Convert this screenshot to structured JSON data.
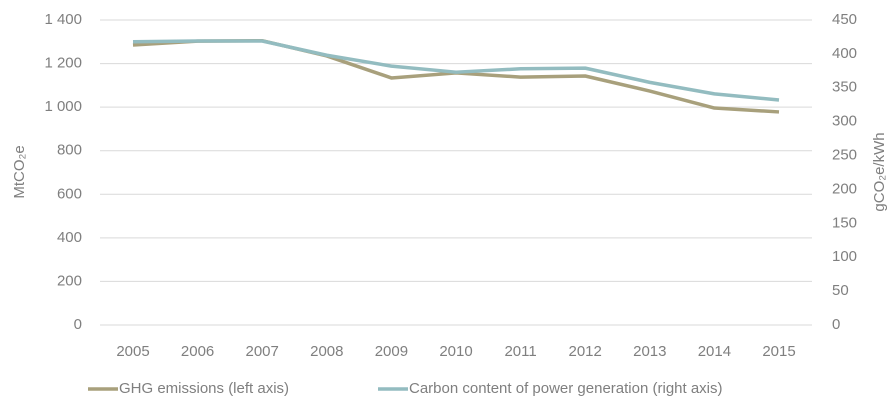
{
  "chart_data": {
    "type": "line",
    "categories": [
      "2005",
      "2006",
      "2007",
      "2008",
      "2009",
      "2010",
      "2011",
      "2012",
      "2013",
      "2014",
      "2015"
    ],
    "y_label": "MtCO₂e",
    "y2_label": "gCO₂e/kWh",
    "series": [
      {
        "name": "GHG emissions (left axis)",
        "color": "#a8a07c",
        "values": [
          1285,
          1303,
          1305,
          1235,
          1134,
          1157,
          1138,
          1143,
          1074,
          996,
          978
        ]
      },
      {
        "name": "Carbon content of power generation (right axis)",
        "color": "#93bcc0",
        "axis": "y2",
        "values": [
          418,
          419,
          419,
          398,
          382,
          373,
          378,
          379,
          358,
          341,
          332
        ]
      }
    ],
    "ylim": [
      0,
      1400
    ],
    "yticks": [
      0,
      200,
      400,
      600,
      800,
      {
        "value": 1000,
        "label": "1 000"
      },
      {
        "value": 1200,
        "label": "1 200"
      },
      {
        "value": 1400,
        "label": "1 400"
      }
    ],
    "y2lim": [
      0,
      450
    ],
    "y2ticks": [
      0,
      50,
      100,
      150,
      200,
      250,
      300,
      350,
      400,
      450
    ],
    "grid": true,
    "legend": "bottom"
  }
}
